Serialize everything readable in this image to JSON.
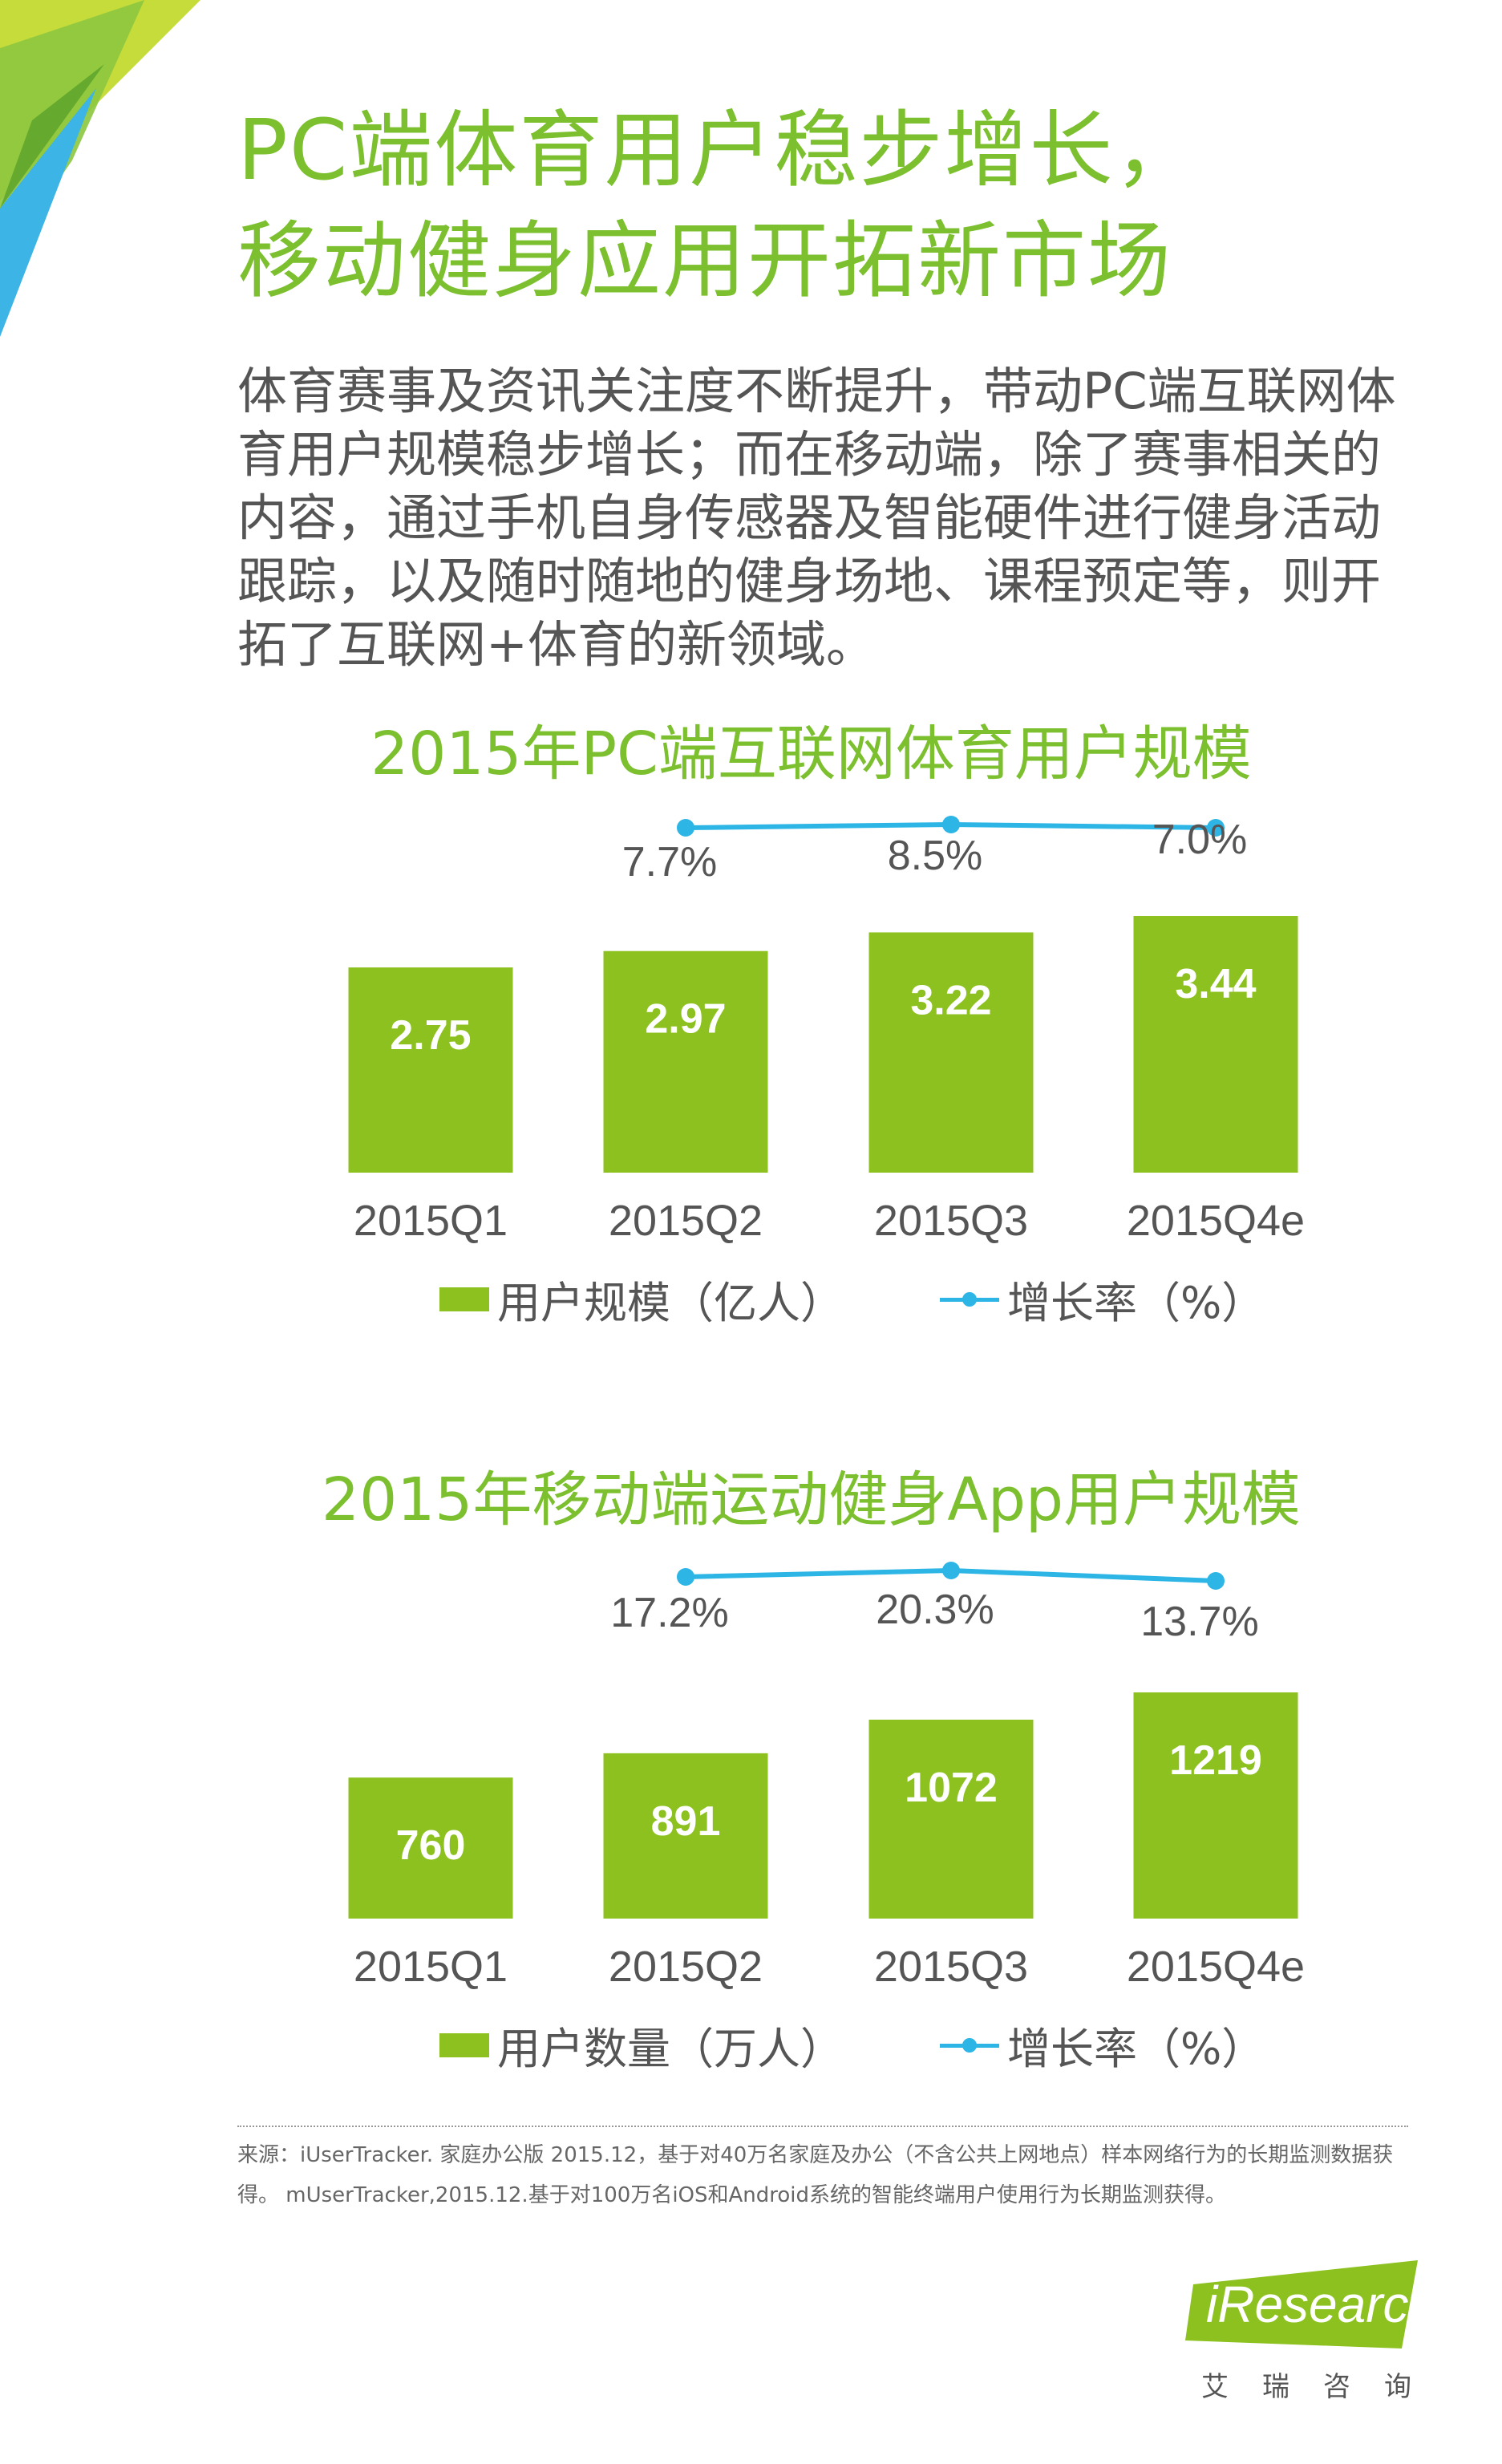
{
  "header": {
    "title_line1": "PC端体育用户稳步增长，",
    "title_line2": "移动健身应用开拓新市场"
  },
  "intro_text": "体育赛事及资讯关注度不断提升，带动PC端互联网体育用户规模稳步增长；而在移动端，除了赛事相关的内容，通过手机自身传感器及智能硬件进行健身活动跟踪，以及随时随地的健身场地、课程预定等，则开拓了互联网+体育的新领域。",
  "colors": {
    "accent_green": "#7cbf2f",
    "bar_green": "#8cc11f",
    "line_blue": "#2cb5e5",
    "text_gray": "#555555"
  },
  "chart_data": [
    {
      "type": "bar",
      "title": "2015年PC端互联网体育用户规模",
      "categories": [
        "2015Q1",
        "2015Q2",
        "2015Q3",
        "2015Q4e"
      ],
      "series": [
        {
          "name": "用户规模（亿人）",
          "type": "bar",
          "values": [
            2.75,
            2.97,
            3.22,
            3.44
          ],
          "labels": [
            "2.75",
            "2.97",
            "3.22",
            "3.44"
          ]
        },
        {
          "name": "增长率（%）",
          "type": "line",
          "values": [
            null,
            7.7,
            8.5,
            7.0
          ],
          "labels": [
            "",
            "7.7%",
            "8.5%",
            "7.0%"
          ]
        }
      ],
      "legend_position": "bottom"
    },
    {
      "type": "bar",
      "title": "2015年移动端运动健身App用户规模",
      "categories": [
        "2015Q1",
        "2015Q2",
        "2015Q3",
        "2015Q4e"
      ],
      "series": [
        {
          "name": "用户数量（万人）",
          "type": "bar",
          "values": [
            760,
            891,
            1072,
            1219
          ],
          "labels": [
            "760",
            "891",
            "1072",
            "1219"
          ]
        },
        {
          "name": "增长率（%）",
          "type": "line",
          "values": [
            null,
            17.2,
            20.3,
            13.7
          ],
          "labels": [
            "",
            "17.2%",
            "20.3%",
            "13.7%"
          ]
        }
      ],
      "legend_position": "bottom"
    }
  ],
  "source": {
    "line1": "来源：iUserTracker. 家庭办公版 2015.12，基于对40万名家庭及办公（不含公共上网地点）样本网络行为的长期监测数据获",
    "line2": "得。 mUserTracker,2015.12.基于对100万名iOS和Android系统的智能终端用户使用行为长期监测获得。"
  },
  "logo": {
    "brand": "iResearch",
    "subtitle": "艾瑞咨询"
  }
}
